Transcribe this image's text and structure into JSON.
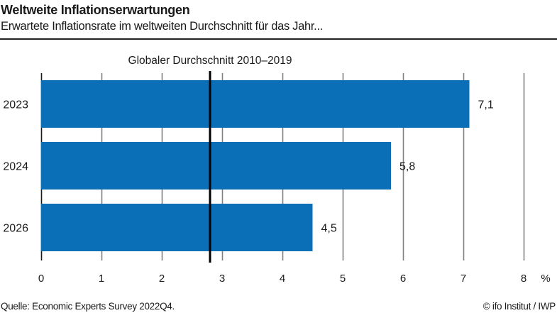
{
  "header": {
    "title": "Weltweite Inflationserwartungen",
    "subtitle": "Erwartete Inflationsrate im weltweiten Durchschnitt für das Jahr..."
  },
  "footer": {
    "source": "Quelle: Economic Experts Survey 2022Q4.",
    "copyright": "© ifo Institut / IWP"
  },
  "colors": {
    "bar": "#0a6fb7",
    "reference_line": "#000000",
    "grid": "#808080"
  },
  "chart_data": {
    "type": "bar",
    "orientation": "horizontal",
    "title": "Weltweite Inflationserwartungen",
    "subtitle": "Erwartete Inflationsrate im weltweiten Durchschnitt für das Jahr...",
    "categories": [
      "2023",
      "2024",
      "2026"
    ],
    "values": [
      7.1,
      5.8,
      4.5
    ],
    "value_labels": [
      "7,1",
      "5,8",
      "4,5"
    ],
    "xlabel": "",
    "ylabel": "",
    "unit_label": "%",
    "xlim": [
      0,
      8
    ],
    "xticks": [
      0,
      1,
      2,
      3,
      4,
      5,
      6,
      7,
      8
    ],
    "xtick_labels": [
      "0",
      "1",
      "2",
      "3",
      "4",
      "5",
      "6",
      "7",
      "8"
    ],
    "grid": true,
    "reference_line": {
      "label": "Globaler Durchschnitt 2010–2019",
      "value": 2.8
    },
    "legend": "none"
  }
}
